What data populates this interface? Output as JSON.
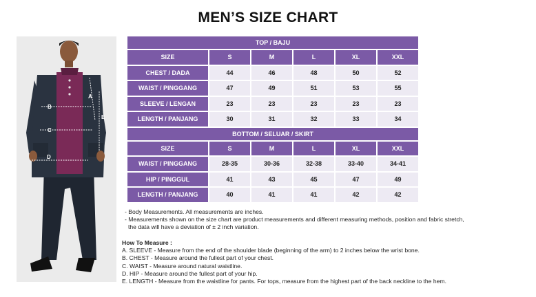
{
  "title": "MEN’S SIZE CHART",
  "photo": {
    "label_a": "A",
    "label_b": "B",
    "label_c": "C",
    "label_d": "D",
    "label_e": "E"
  },
  "top": {
    "section": "TOP / BAJU",
    "header": [
      "SIZE",
      "S",
      "M",
      "L",
      "XL",
      "XXL"
    ],
    "rows": [
      {
        "label": "CHEST / DADA",
        "values": [
          "44",
          "46",
          "48",
          "50",
          "52"
        ]
      },
      {
        "label": "WAIST / PINGGANG",
        "values": [
          "47",
          "49",
          "51",
          "53",
          "55"
        ]
      },
      {
        "label": "SLEEVE / LENGAN",
        "values": [
          "23",
          "23",
          "23",
          "23",
          "23"
        ]
      },
      {
        "label": "LENGTH / PANJANG",
        "values": [
          "30",
          "31",
          "32",
          "33",
          "34"
        ]
      }
    ]
  },
  "bottom": {
    "section": "BOTTOM / SELUAR / SKIRT",
    "header": [
      "SIZE",
      "S",
      "M",
      "L",
      "XL",
      "XXL"
    ],
    "rows": [
      {
        "label": "WAIST / PINGGANG",
        "values": [
          "28-35",
          "30-36",
          "32-38",
          "33-40",
          "34-41"
        ]
      },
      {
        "label": "HIP / PINGGUL",
        "values": [
          "41",
          "43",
          "45",
          "47",
          "49"
        ]
      },
      {
        "label": "LENGTH / PANJANG",
        "values": [
          "40",
          "41",
          "41",
          "42",
          "42"
        ]
      }
    ]
  },
  "notes": {
    "line1": "- Body Measurements. All measurements are inches.",
    "line2": "- Measurements shown on the size chart are product measurements and different measuring methods, position and fabric stretch,",
    "line3": "the data will have a deviation of ± 2 inch variation."
  },
  "howto": {
    "heading": "How To Measure :",
    "items": [
      "A. SLEEVE - Measure from the end of the shoulder blade (beginning of the arm) to 2 inches below the wrist bone.",
      "B. CHEST - Measure around the fullest part of your chest.",
      "C. WAIST - Measure around natural waistline.",
      "D. HIP - Measure around the fullest part of your hip.",
      "E. LENGTH - Measure from the waistline for pants. For tops, measure from the highest part of the back neckline to the hem."
    ]
  },
  "colors": {
    "accent": "#7b5aa6",
    "cell": "#edeaf3",
    "baju": "#2a3340",
    "panel": "#7a2a57"
  }
}
